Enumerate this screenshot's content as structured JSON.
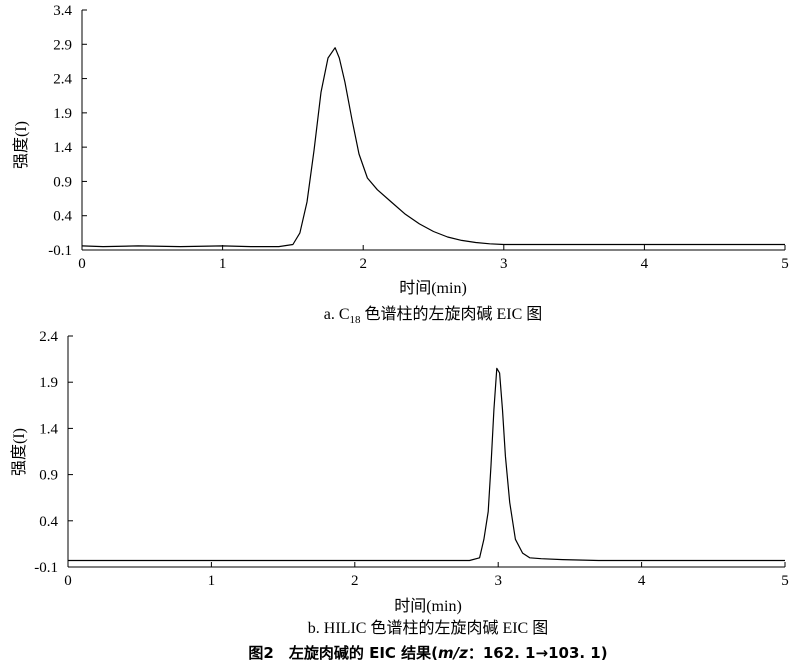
{
  "chart_data": [
    {
      "type": "line",
      "xlabel": "时间(min)",
      "ylabel": "强度(I)",
      "caption": "a. C18 色谱柱的左旋肉碱 EIC 图",
      "caption_main": "a. C",
      "caption_sub": "18",
      "caption_rest": " 色谱柱的左旋肉碱 EIC 图",
      "xlim": [
        0,
        5
      ],
      "ylim": [
        -0.1,
        3.4
      ],
      "xticks": [
        "0",
        "1",
        "2",
        "3",
        "4",
        "5"
      ],
      "yticks": [
        "-0.1",
        "0.4",
        "0.9",
        "1.4",
        "1.9",
        "2.4",
        "2.9",
        "3.4"
      ],
      "grid": false,
      "series": [
        {
          "x": [
            0,
            0.15,
            0.4,
            0.7,
            1.0,
            1.2,
            1.4,
            1.5,
            1.55,
            1.6,
            1.65,
            1.7,
            1.75,
            1.8,
            1.83,
            1.87,
            1.92,
            1.97,
            2.03,
            2.1,
            2.2,
            2.3,
            2.4,
            2.5,
            2.6,
            2.7,
            2.8,
            2.9,
            3.0,
            3.5,
            4.0,
            4.5,
            5.0
          ],
          "y": [
            -0.04,
            -0.05,
            -0.04,
            -0.05,
            -0.04,
            -0.05,
            -0.05,
            -0.02,
            0.15,
            0.6,
            1.35,
            2.2,
            2.7,
            2.85,
            2.7,
            2.35,
            1.8,
            1.3,
            0.95,
            0.78,
            0.6,
            0.42,
            0.28,
            0.17,
            0.09,
            0.04,
            0.01,
            -0.01,
            -0.02,
            -0.02,
            -0.02,
            -0.02,
            -0.02
          ]
        }
      ]
    },
    {
      "type": "line",
      "xlabel": "时间(min)",
      "ylabel": "强度(I)",
      "caption": "b. HILIC 色谱柱的左旋肉碱 EIC 图",
      "xlim": [
        0,
        5
      ],
      "ylim": [
        -0.1,
        2.4
      ],
      "xticks": [
        "0",
        "1",
        "2",
        "3",
        "4",
        "5"
      ],
      "yticks": [
        "-0.1",
        "0.4",
        "0.9",
        "1.4",
        "1.9",
        "2.4"
      ],
      "grid": false,
      "series": [
        {
          "x": [
            0,
            1.0,
            2.0,
            2.8,
            2.87,
            2.9,
            2.93,
            2.95,
            2.97,
            2.99,
            3.01,
            3.03,
            3.05,
            3.08,
            3.12,
            3.17,
            3.22,
            3.3,
            3.45,
            3.7,
            4.0,
            5.0
          ],
          "y": [
            -0.03,
            -0.03,
            -0.03,
            -0.03,
            0.0,
            0.2,
            0.5,
            1.0,
            1.6,
            2.05,
            2.0,
            1.6,
            1.1,
            0.6,
            0.2,
            0.05,
            0.0,
            -0.01,
            -0.02,
            -0.03,
            -0.03,
            -0.03
          ]
        }
      ]
    }
  ],
  "figure_caption": {
    "prefix": "图2　左旋肉碱的 EIC 结果(",
    "italic": "m/z",
    "suffix": "：162. 1→103. 1)"
  }
}
